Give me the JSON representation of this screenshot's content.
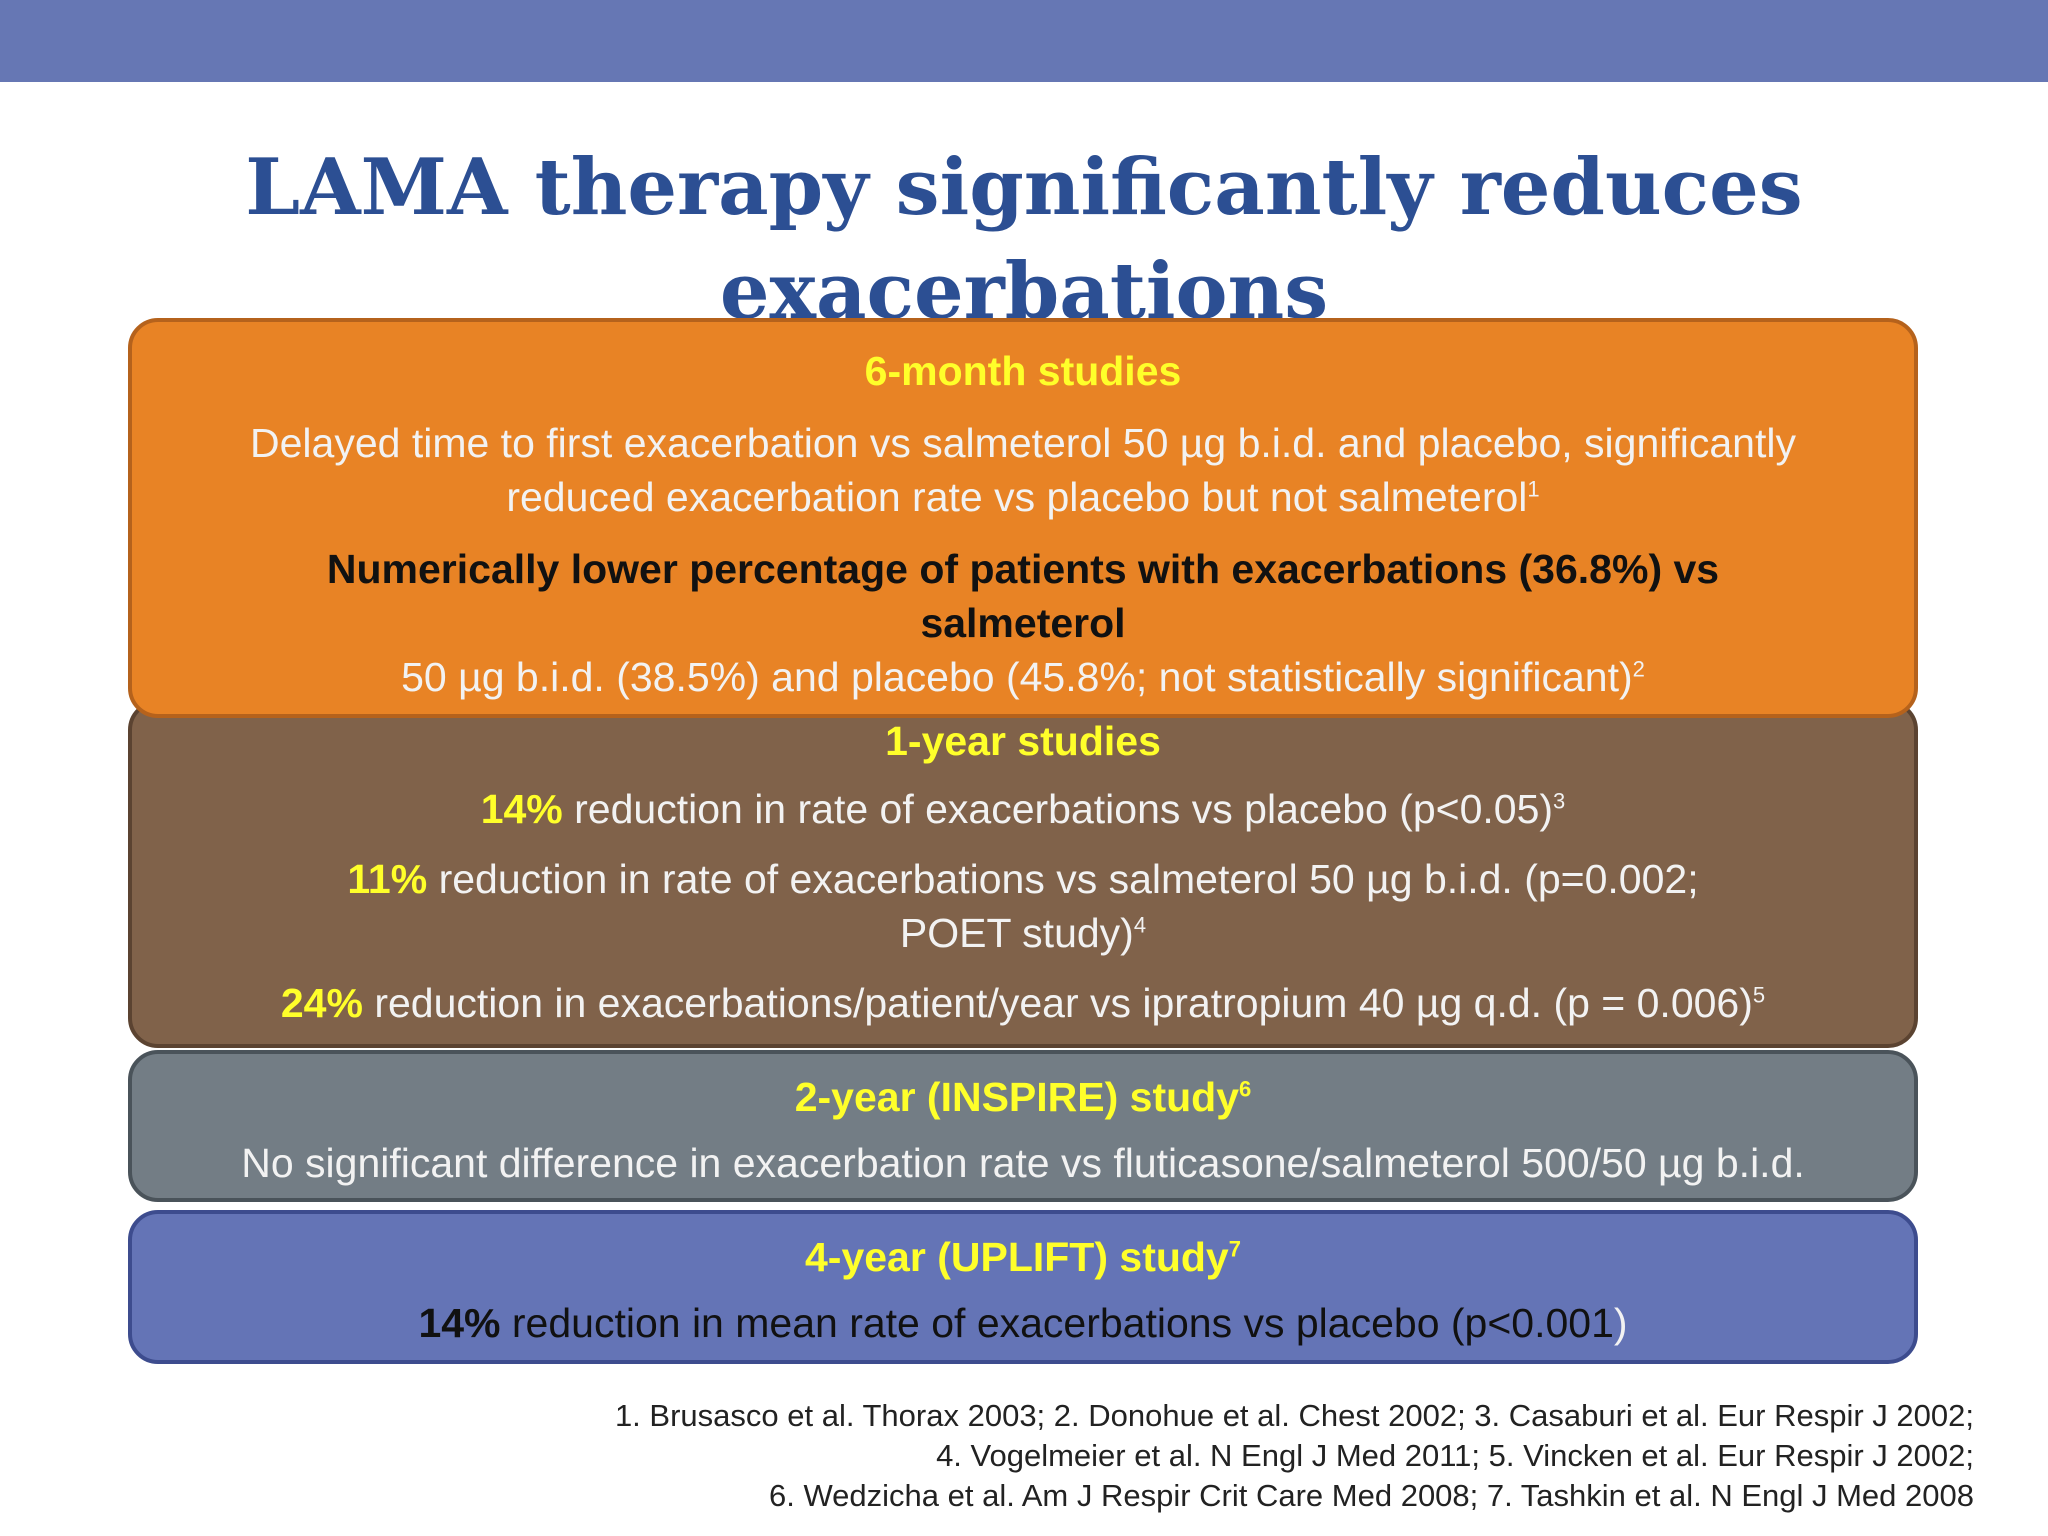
{
  "title": {
    "line1": "LAMA therapy significantly reduces",
    "line2": "exacerbations"
  },
  "box1": {
    "header": "6-month studies",
    "line1": "Delayed time to first exacerbation vs salmeterol 50 µg b.i.d. and placebo, significantly",
    "line2": "reduced exacerbation rate vs placebo but not salmeterol",
    "line2_ref": "1",
    "bold1": "Numerically lower percentage of patients with exacerbations (36.8%) vs",
    "bold2": "salmeterol",
    "line3": "50 µg b.i.d. (38.5%) and placebo (45.8%; not statistically significant)",
    "line3_ref": "2"
  },
  "box2": {
    "header": "1-year studies",
    "item1_pct": "14%",
    "item1_text": " reduction in rate of exacerbations vs placebo (p<0.05)",
    "item1_ref": "3",
    "item2_pct": "11%",
    "item2_text": " reduction in rate of exacerbations vs salmeterol 50 µg b.i.d. (p=0.002;",
    "item2_text2": "POET study)",
    "item2_ref": "4",
    "item3_pct": "24%",
    "item3_text": " reduction in exacerbations/patient/year vs ipratropium 40 µg q.d. (p = 0.006)",
    "item3_ref": "5"
  },
  "box3": {
    "header": "2-year (INSPIRE) study",
    "header_ref": "6",
    "text": "No significant difference in exacerbation rate vs fluticasone/salmeterol 500/50 µg b.i.d."
  },
  "box4": {
    "header": "4-year (UPLIFT) study",
    "header_ref": "7",
    "pct": "14%",
    "text": " reduction in mean rate of exacerbations vs placebo (p<0.001",
    "paren": ")"
  },
  "references": [
    "1. Brusasco et al. Thorax 2003; 2. Donohue et al. Chest 2002; 3. Casaburi et al. Eur Respir J 2002;",
    "4. Vogelmeier et al. N Engl J Med 2011; 5. Vincken et al. Eur Respir J 2002;",
    "6. Wedzicha et al. Am J Respir Crit Care Med 2008; 7. Tashkin et al. N Engl J Med 2008"
  ]
}
